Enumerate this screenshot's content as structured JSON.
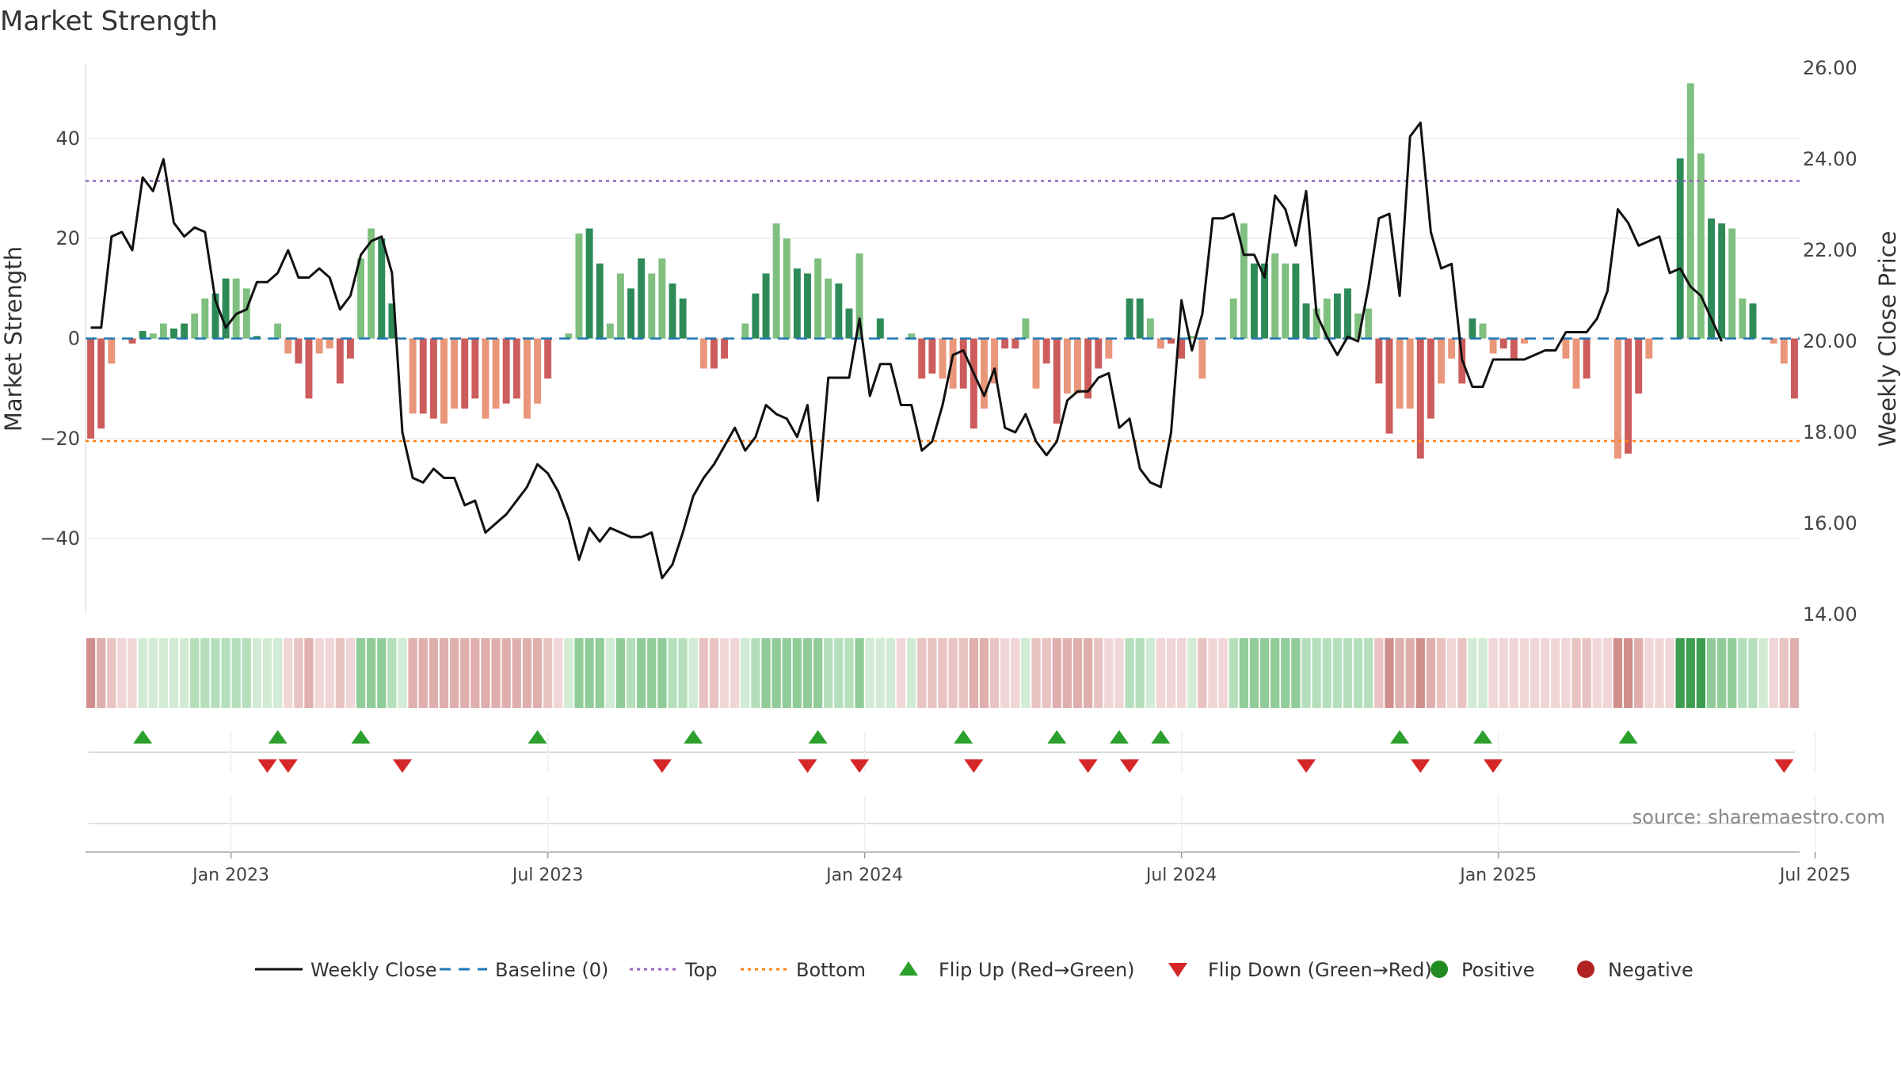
{
  "chart_data": {
    "type": "bar+line",
    "title": "Market Strength",
    "ylabel_left": "Market Strength",
    "ylabel_right": "Weekly Close Price",
    "yticks_left": [
      "−40",
      "−20",
      "0",
      "20",
      "40"
    ],
    "yticks_left_values": [
      -40,
      -20,
      0,
      20,
      40
    ],
    "ylim_left": [
      -55,
      55
    ],
    "yticks_right": [
      "14.00",
      "16.00",
      "18.00",
      "20.00",
      "22.00",
      "24.00",
      "26.00"
    ],
    "yticks_right_values": [
      14,
      16,
      18,
      20,
      22,
      24,
      26
    ],
    "ylim_right": [
      14,
      26
    ],
    "xticks": [
      "Jan 2023",
      "Jul 2023",
      "Jan 2024",
      "Jul 2024",
      "Jan 2025",
      "Jul 2025"
    ],
    "xtick_weeks": [
      14,
      44.5,
      75,
      105.5,
      136,
      166.5
    ],
    "top_level": 31.5,
    "bottom_level": -20.5,
    "strength": [
      -20,
      -18,
      -5,
      0,
      -1,
      1.5,
      1,
      3,
      2,
      3,
      5,
      8,
      9,
      12,
      12,
      10,
      0.5,
      0,
      3,
      -3,
      -5,
      -12,
      -3,
      -2,
      -9,
      -4,
      16,
      22,
      20,
      7,
      0,
      -15,
      -15,
      -16,
      -17,
      -14,
      -14,
      -12,
      -16,
      -14,
      -13,
      -12,
      -16,
      -13,
      -8,
      0,
      1,
      21,
      22,
      15,
      3,
      13,
      10,
      16,
      13,
      16,
      11,
      8,
      0,
      -6,
      -6,
      -4,
      0,
      3,
      9,
      13,
      23,
      20,
      14,
      13,
      16,
      12,
      11,
      6,
      17,
      0,
      4,
      0,
      0,
      1,
      -8,
      -7,
      -8,
      -10,
      -10,
      -18,
      -14,
      -9,
      -2,
      -2,
      4,
      -10,
      -5,
      -17,
      -11,
      -11,
      -12,
      -6,
      -4,
      0,
      8,
      8,
      4,
      -2,
      -1,
      -4,
      0.5,
      -8,
      0,
      0,
      8,
      23,
      15,
      15,
      17,
      15,
      15,
      7,
      6,
      8,
      9,
      10,
      5,
      6,
      -9,
      -19,
      -14,
      -14,
      -24,
      -16,
      -9,
      -4,
      -9,
      4,
      3,
      -3,
      -2,
      -4,
      -1,
      0,
      0,
      0,
      -4,
      -10,
      -8,
      0,
      0,
      -24,
      -23,
      -11,
      -4,
      0,
      0,
      36,
      51,
      37,
      24,
      23,
      22,
      8,
      7,
      0,
      -1,
      -5,
      -12
    ],
    "close": [
      20.3,
      20.3,
      22.3,
      22.4,
      22.0,
      23.6,
      23.3,
      24.0,
      22.6,
      22.3,
      22.5,
      22.4,
      20.9,
      20.3,
      20.6,
      20.7,
      21.3,
      21.3,
      21.5,
      22.0,
      21.4,
      21.4,
      21.6,
      21.4,
      20.7,
      21.0,
      21.9,
      22.2,
      22.3,
      21.5,
      18.0,
      17.0,
      16.9,
      17.2,
      17.0,
      17.0,
      16.4,
      16.5,
      15.8,
      16.0,
      16.2,
      16.5,
      16.8,
      17.3,
      17.1,
      16.7,
      16.1,
      15.2,
      15.9,
      15.6,
      15.9,
      15.8,
      15.7,
      15.7,
      15.8,
      14.8,
      15.1,
      15.8,
      16.6,
      17.0,
      17.3,
      17.7,
      18.1,
      17.6,
      17.9,
      18.6,
      18.4,
      18.3,
      17.9,
      18.6,
      16.5,
      19.2,
      19.2,
      19.2,
      20.5,
      18.8,
      19.5,
      19.5,
      18.6,
      18.6,
      17.6,
      17.8,
      18.6,
      19.7,
      19.8,
      19.3,
      18.8,
      19.4,
      18.1,
      18.0,
      18.4,
      17.8,
      17.5,
      17.8,
      18.7,
      18.9,
      18.9,
      19.2,
      19.3,
      18.1,
      18.3,
      17.2,
      16.9,
      16.8,
      18.0,
      20.9,
      19.8,
      20.6,
      22.7,
      22.7,
      22.8,
      21.9,
      21.9,
      21.4,
      23.2,
      22.9,
      22.1,
      23.3,
      20.6,
      20.1,
      19.7,
      20.1,
      20.0,
      21.2,
      22.7,
      22.8,
      21.0,
      24.5,
      24.8,
      22.4,
      21.6,
      21.7,
      19.6,
      19.0,
      19.0,
      19.6,
      19.6,
      19.6,
      19.6,
      19.7,
      19.8,
      19.8,
      20.2,
      20.2,
      20.2,
      20.5,
      21.1,
      22.9,
      22.6,
      22.1,
      22.2,
      22.3,
      21.5,
      21.6,
      21.2,
      21.0,
      20.5,
      20.0
    ],
    "state_colors": {
      "pos1": "#d2ebd4",
      "pos2": "#b5dfbb",
      "pos3": "#90cc98",
      "pos4": "#3d9e4f",
      "neg1": "#f0d6d6",
      "neg2": "#e8c3c1",
      "neg3": "#dfafad",
      "neg4": "#d08f8c"
    },
    "flip_up_weeks": [
      5,
      18,
      26,
      43,
      58,
      70,
      84,
      93,
      99,
      103,
      126,
      134,
      148
    ],
    "flip_down_weeks": [
      17,
      19,
      30,
      55,
      69,
      74,
      85,
      96,
      100,
      117,
      128,
      135,
      163
    ],
    "source": "source: sharemaestro.com"
  },
  "colors": {
    "bar_green_dark": "#2e8b57",
    "bar_green_light": "#7fc07f",
    "bar_red_dark": "#cd5c5c",
    "bar_red_light": "#e9967a",
    "close_line": "#111111",
    "baseline": "#1f77b4",
    "top": "#9467bd",
    "bottom": "#ff7f0e",
    "flip_up": "#2ca02c",
    "flip_down": "#d62728",
    "positive": "#228b22",
    "negative": "#b22222"
  },
  "legend": [
    {
      "label": "Weekly Close",
      "kind": "line-solid",
      "color": "#111111"
    },
    {
      "label": "Baseline (0)",
      "kind": "line-dash",
      "color": "#1f77b4"
    },
    {
      "label": "Top",
      "kind": "line-dot",
      "color": "#9467bd"
    },
    {
      "label": "Bottom",
      "kind": "line-dot",
      "color": "#ff7f0e"
    },
    {
      "label": "Flip Up (Red→Green)",
      "kind": "tri-up",
      "color": "#2ca02c"
    },
    {
      "label": "Flip Down (Green→Red)",
      "kind": "tri-down",
      "color": "#d62728"
    },
    {
      "label": "Positive",
      "kind": "dot",
      "color": "#228b22"
    },
    {
      "label": "Negative",
      "kind": "dot",
      "color": "#b22222"
    }
  ]
}
